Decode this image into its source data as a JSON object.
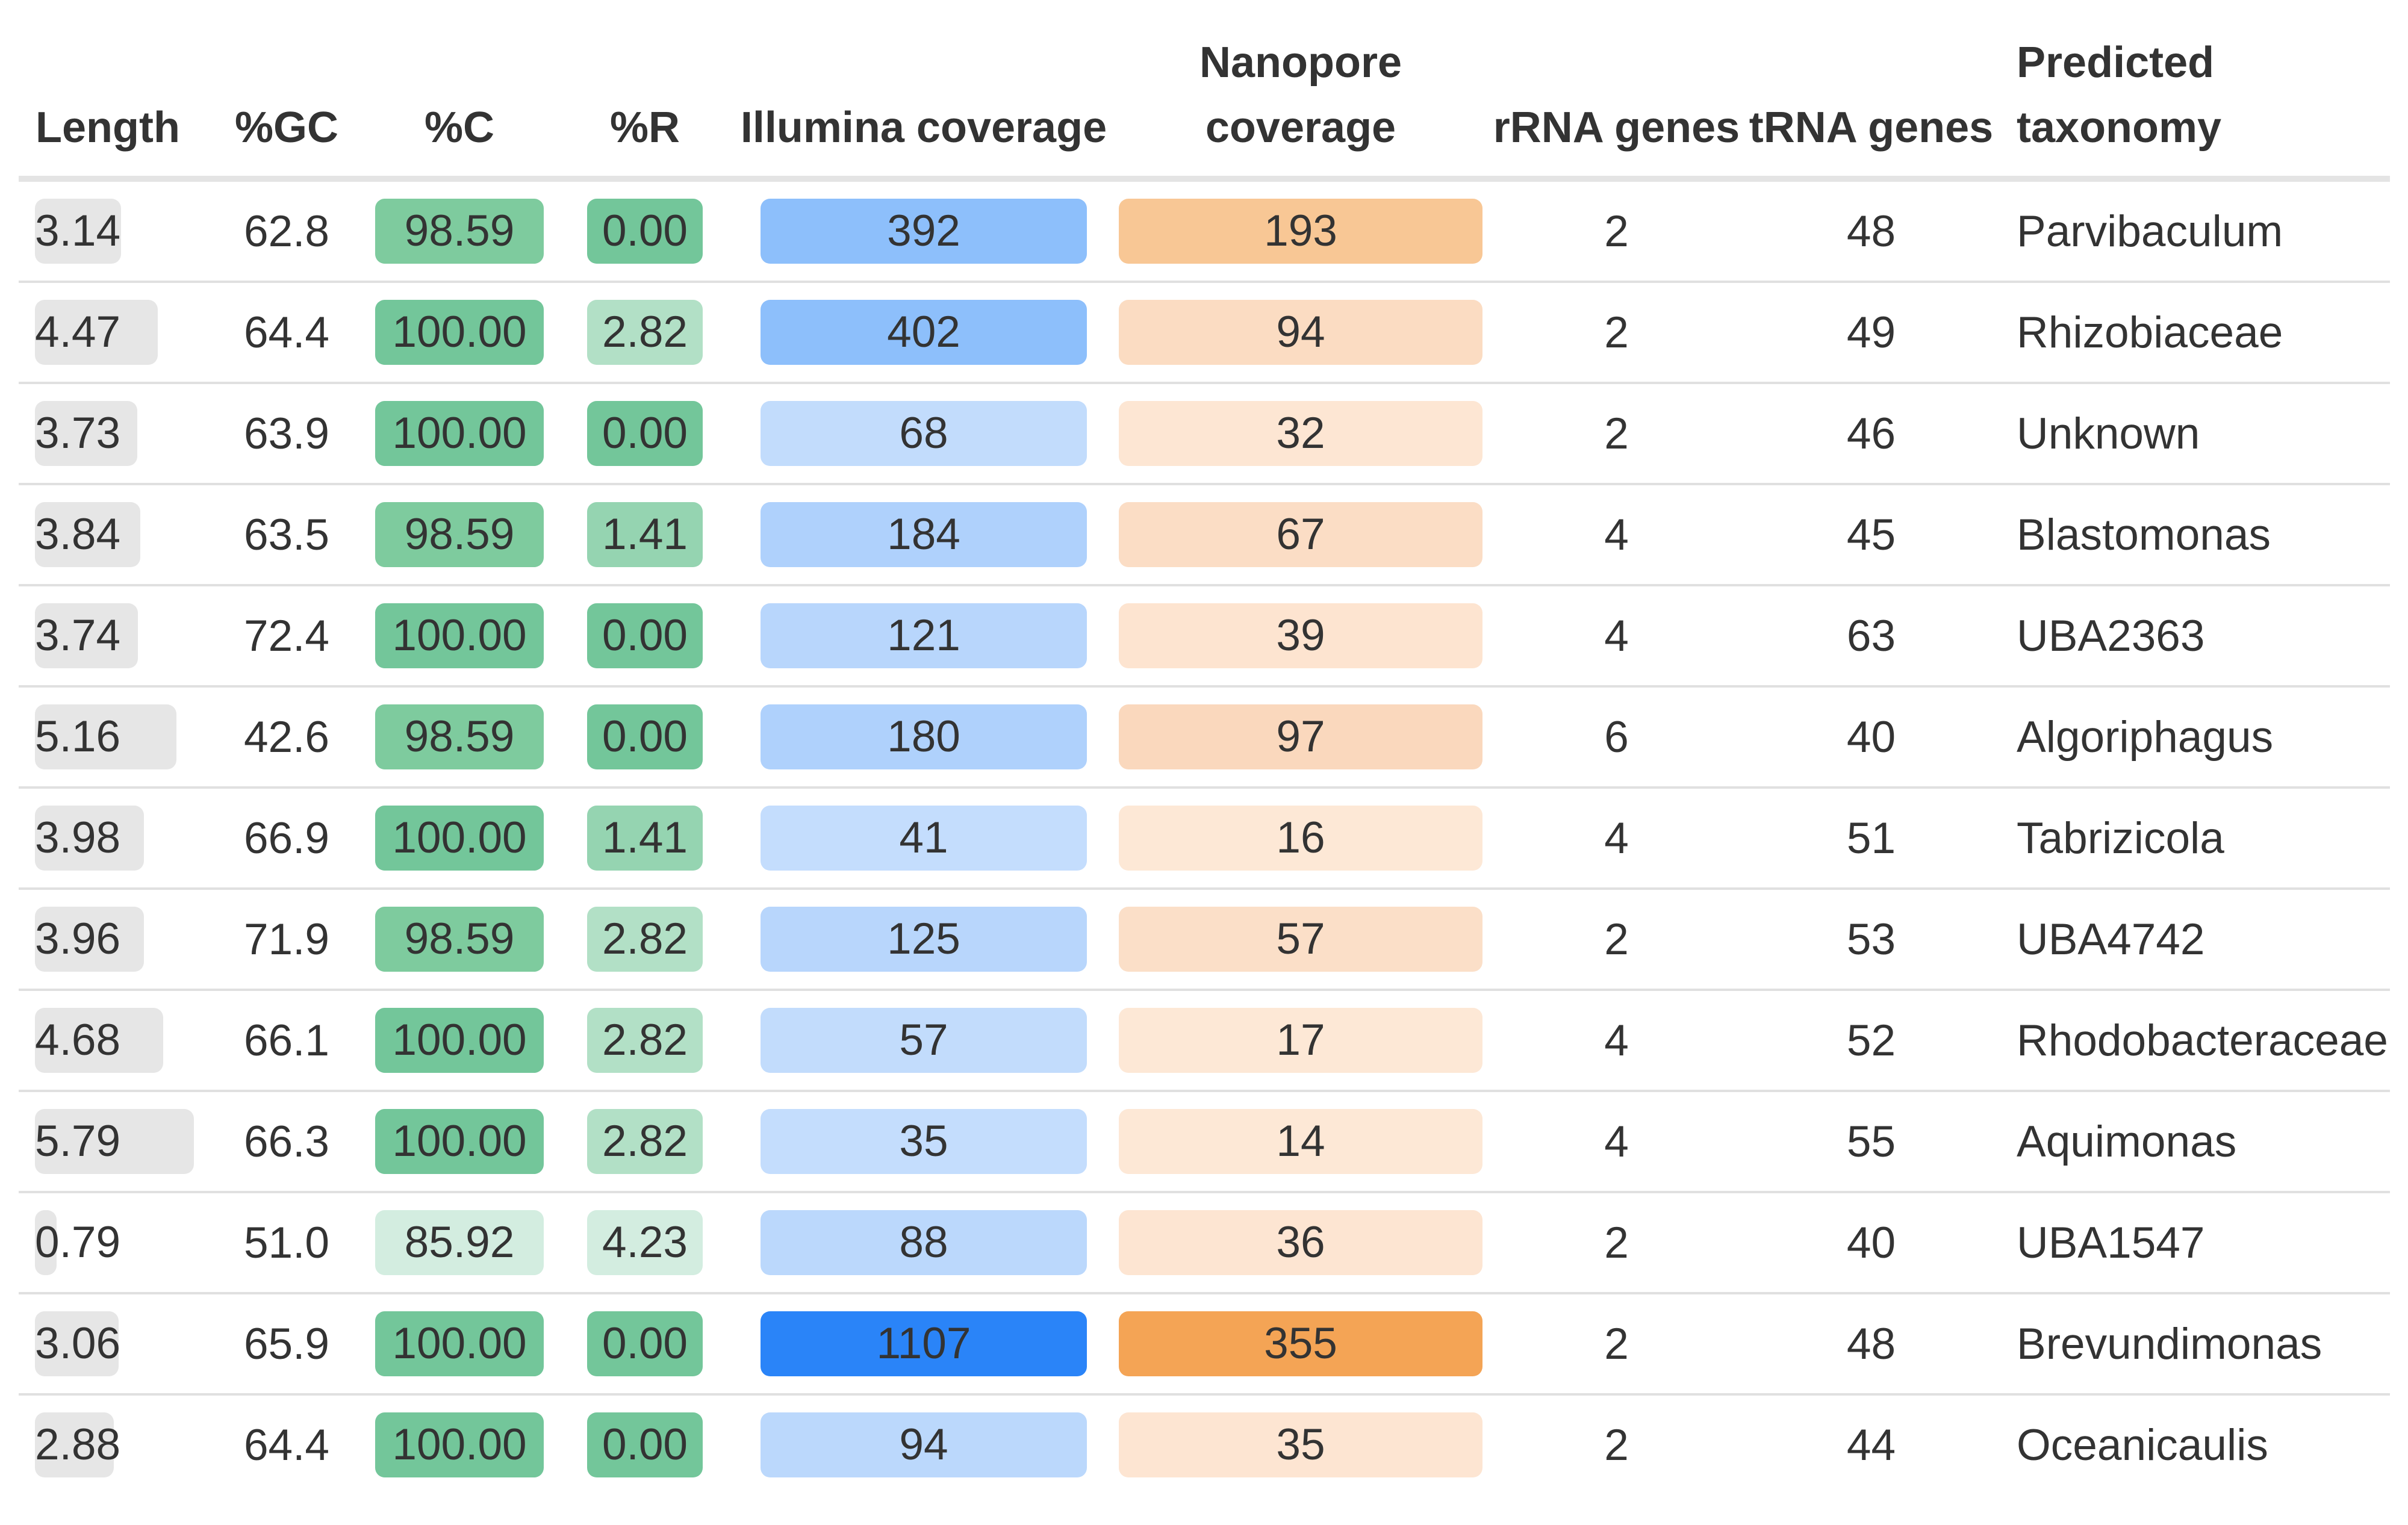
{
  "table": {
    "headers": {
      "length": "Length",
      "gc": "%GC",
      "c": "%C",
      "r": "%R",
      "illumina": "Illumina coverage",
      "nanopore": "Nanopore coverage",
      "rrna": "rRNA genes",
      "trna": "tRNA genes",
      "taxonomy": "Predicted taxonomy"
    },
    "scale_colors": {
      "length_bar": "#e6e6e6",
      "completeness_high": "#73c69a",
      "completeness_low": "#d3ede0",
      "illumina_max": "#2a84f8",
      "illumina_min": "#c3dcfd",
      "nanopore_max": "#f4a455",
      "nanopore_min": "#fde7d5"
    },
    "rows": [
      {
        "length": "3.14",
        "length_fraction": 0.542,
        "gc": "62.8",
        "c": "98.59",
        "c_color": "#7ecb9e",
        "r": "0.00",
        "r_color": "#73c69a",
        "illumina": "392",
        "illumina_color": "#8dbffb",
        "nanopore": "193",
        "nanopore_color": "#f8c795",
        "rrna": "2",
        "trna": "48",
        "taxonomy": "Parvibaculum"
      },
      {
        "length": "4.47",
        "length_fraction": 0.772,
        "gc": "64.4",
        "c": "100.00",
        "c_color": "#73c69a",
        "r": "2.82",
        "r_color": "#b2e0c6",
        "illumina": "402",
        "illumina_color": "#8dbffb",
        "nanopore": "94",
        "nanopore_color": "#fbdcc2",
        "rrna": "2",
        "trna": "49",
        "taxonomy": "Rhizobiaceae"
      },
      {
        "length": "3.73",
        "length_fraction": 0.644,
        "gc": "63.9",
        "c": "100.00",
        "c_color": "#73c69a",
        "r": "0.00",
        "r_color": "#73c69a",
        "illumina": "68",
        "illumina_color": "#c2dcfc",
        "nanopore": "32",
        "nanopore_color": "#fde6d3",
        "rrna": "2",
        "trna": "46",
        "taxonomy": "Unknown"
      },
      {
        "length": "3.84",
        "length_fraction": 0.663,
        "gc": "63.5",
        "c": "98.59",
        "c_color": "#7ecb9e",
        "r": "1.41",
        "r_color": "#95d4b1",
        "illumina": "184",
        "illumina_color": "#afd1fc",
        "nanopore": "67",
        "nanopore_color": "#fbddc5",
        "rrna": "4",
        "trna": "45",
        "taxonomy": "Blastomonas"
      },
      {
        "length": "3.74",
        "length_fraction": 0.646,
        "gc": "72.4",
        "c": "100.00",
        "c_color": "#73c69a",
        "r": "0.00",
        "r_color": "#73c69a",
        "illumina": "121",
        "illumina_color": "#b8d6fc",
        "nanopore": "39",
        "nanopore_color": "#fde4d0",
        "rrna": "4",
        "trna": "63",
        "taxonomy": "UBA2363"
      },
      {
        "length": "5.16",
        "length_fraction": 0.891,
        "gc": "42.6",
        "c": "98.59",
        "c_color": "#7ecb9e",
        "r": "0.00",
        "r_color": "#73c69a",
        "illumina": "180",
        "illumina_color": "#afd1fc",
        "nanopore": "97",
        "nanopore_color": "#fad8bd",
        "rrna": "6",
        "trna": "40",
        "taxonomy": "Algoriphagus"
      },
      {
        "length": "3.98",
        "length_fraction": 0.687,
        "gc": "66.9",
        "c": "100.00",
        "c_color": "#73c69a",
        "r": "1.41",
        "r_color": "#95d4b1",
        "illumina": "41",
        "illumina_color": "#c4ddfd",
        "nanopore": "16",
        "nanopore_color": "#fde8d6",
        "rrna": "4",
        "trna": "51",
        "taxonomy": "Tabrizicola"
      },
      {
        "length": "3.96",
        "length_fraction": 0.684,
        "gc": "71.9",
        "c": "98.59",
        "c_color": "#7ecb9e",
        "r": "2.82",
        "r_color": "#b2e0c6",
        "illumina": "125",
        "illumina_color": "#b8d6fc",
        "nanopore": "57",
        "nanopore_color": "#fbdfc8",
        "rrna": "2",
        "trna": "53",
        "taxonomy": "UBA4742"
      },
      {
        "length": "4.68",
        "length_fraction": 0.808,
        "gc": "66.1",
        "c": "100.00",
        "c_color": "#73c69a",
        "r": "2.82",
        "r_color": "#b2e0c6",
        "illumina": "57",
        "illumina_color": "#c2dcfc",
        "nanopore": "17",
        "nanopore_color": "#fde8d6",
        "rrna": "4",
        "trna": "52",
        "taxonomy": "Rhodobacteraceae"
      },
      {
        "length": "5.79",
        "length_fraction": 1.0,
        "gc": "66.3",
        "c": "100.00",
        "c_color": "#73c69a",
        "r": "2.82",
        "r_color": "#b2e0c6",
        "illumina": "35",
        "illumina_color": "#c4ddfd",
        "nanopore": "14",
        "nanopore_color": "#fde8d6",
        "rrna": "4",
        "trna": "55",
        "taxonomy": "Aquimonas"
      },
      {
        "length": "0.79",
        "length_fraction": 0.136,
        "gc": "51.0",
        "c": "85.92",
        "c_color": "#d3ede0",
        "r": "4.23",
        "r_color": "#d3ede0",
        "illumina": "88",
        "illumina_color": "#bbd8fc",
        "nanopore": "36",
        "nanopore_color": "#fde5d2",
        "rrna": "2",
        "trna": "40",
        "taxonomy": "UBA1547"
      },
      {
        "length": "3.06",
        "length_fraction": 0.528,
        "gc": "65.9",
        "c": "100.00",
        "c_color": "#73c69a",
        "r": "0.00",
        "r_color": "#73c69a",
        "illumina": "1107",
        "illumina_color": "#2a84f8",
        "nanopore": "355",
        "nanopore_color": "#f4a455",
        "rrna": "2",
        "trna": "48",
        "taxonomy": "Brevundimonas"
      },
      {
        "length": "2.88",
        "length_fraction": 0.497,
        "gc": "64.4",
        "c": "100.00",
        "c_color": "#73c69a",
        "r": "0.00",
        "r_color": "#73c69a",
        "illumina": "94",
        "illumina_color": "#bbd8fc",
        "nanopore": "35",
        "nanopore_color": "#fde5d2",
        "rrna": "2",
        "trna": "44",
        "taxonomy": "Oceanicaulis"
      }
    ]
  }
}
